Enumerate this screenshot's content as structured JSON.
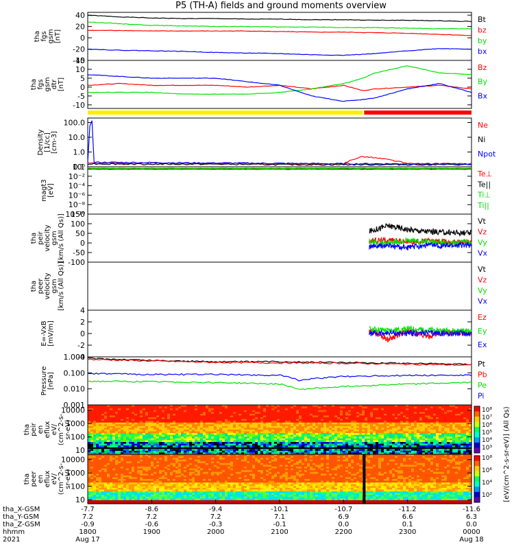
{
  "title": "P5 (TH-A) fields and ground moments overview",
  "colors": {
    "black": "#000000",
    "red": "#ff0000",
    "green": "#00e000",
    "blue": "#0000ff",
    "yellow": "#ffee00"
  },
  "chart_data": [
    {
      "id": "fgs-gsm-mag",
      "type": "line",
      "ylabel": [
        "tha",
        "fgs",
        "gsm",
        "[nT]"
      ],
      "ylim": [
        -40,
        45
      ],
      "yticks": [
        40,
        20,
        0,
        -20,
        -40
      ],
      "series": [
        {
          "name": "Bt",
          "color": "#000000",
          "x": [
            18.0,
            18.5,
            19.0,
            19.5,
            20.0,
            20.5,
            21.0,
            21.5,
            22.0,
            22.5,
            23.0,
            23.5,
            24.0
          ],
          "values": [
            40,
            37,
            35,
            34,
            34,
            33,
            33,
            32,
            32,
            31,
            31,
            30,
            29
          ]
        },
        {
          "name": "bz",
          "color": "#ff0000",
          "x": [
            18.0,
            18.5,
            19.0,
            19.5,
            20.0,
            20.5,
            21.0,
            21.5,
            22.0,
            22.5,
            23.0,
            23.5,
            24.0
          ],
          "values": [
            13,
            13,
            12,
            12,
            12,
            12,
            11,
            10,
            10,
            9,
            8,
            6,
            4
          ]
        },
        {
          "name": "by",
          "color": "#00e000",
          "x": [
            18.0,
            18.5,
            19.0,
            19.5,
            20.0,
            20.5,
            21.0,
            21.5,
            22.0,
            22.5,
            23.0,
            23.5,
            24.0
          ],
          "values": [
            28,
            25,
            22,
            21,
            20,
            20,
            19,
            19,
            18,
            18,
            17,
            16,
            16
          ]
        },
        {
          "name": "bx",
          "color": "#0000ff",
          "x": [
            18.0,
            18.5,
            19.0,
            19.5,
            20.0,
            20.5,
            21.0,
            21.5,
            22.0,
            22.5,
            23.0,
            23.5,
            24.0
          ],
          "values": [
            -20,
            -22,
            -23,
            -24,
            -26,
            -27,
            -28,
            -30,
            -31,
            -28,
            -23,
            -19,
            -20
          ]
        }
      ]
    },
    {
      "id": "fgs-gsm-detrended",
      "type": "line",
      "ylabel": [
        "tha",
        "fgs",
        "gsm",
        "dtr",
        "[nT]"
      ],
      "ylim": [
        -12,
        15
      ],
      "yticks": [
        15,
        10,
        5,
        0,
        -5,
        -10
      ],
      "series": [
        {
          "name": "Bz",
          "color": "#ff0000",
          "x": [
            18.0,
            18.5,
            19.0,
            19.5,
            20.0,
            20.5,
            21.0,
            21.5,
            22.0,
            22.3,
            22.5,
            23.0,
            23.5,
            24.0
          ],
          "values": [
            1,
            2,
            1,
            1,
            1,
            0,
            1,
            -1,
            1,
            -2,
            -1,
            0,
            1,
            -1
          ]
        },
        {
          "name": "By",
          "color": "#00e000",
          "x": [
            18.0,
            18.5,
            19.0,
            19.5,
            20.0,
            20.5,
            21.0,
            21.5,
            22.0,
            22.3,
            22.5,
            23.0,
            23.5,
            24.0
          ],
          "values": [
            -3,
            -3,
            -3,
            -4,
            -4,
            -4,
            -3,
            -1,
            2,
            5,
            8,
            12,
            8,
            7
          ]
        },
        {
          "name": "Bx",
          "color": "#0000ff",
          "x": [
            18.0,
            18.5,
            19.0,
            19.5,
            20.0,
            20.5,
            21.0,
            21.5,
            22.0,
            22.3,
            22.5,
            23.0,
            23.5,
            24.0
          ],
          "values": [
            7,
            6,
            5,
            5,
            5,
            3,
            1,
            -5,
            -8,
            -7,
            -6,
            -1,
            2,
            -3
          ]
        }
      ]
    },
    {
      "id": "peir-density",
      "type": "line",
      "ylabel": [
        "Density",
        "[1/cc]",
        "[cm-3]"
      ],
      "ylog": true,
      "ylim": [
        0.1,
        200
      ],
      "yticks": [
        100.0,
        10.0,
        1.0,
        0.1
      ],
      "yticklabels": [
        "100.0",
        "10.0",
        "1.0",
        "0.1"
      ],
      "series": [
        {
          "name": "Ne",
          "color": "#ff0000",
          "x": [
            18.0,
            19.0,
            20.0,
            21.0,
            22.0,
            22.3,
            23.0,
            24.0
          ],
          "values": [
            0.18,
            0.17,
            0.17,
            0.16,
            0.15,
            0.5,
            0.16,
            0.16
          ]
        },
        {
          "name": "Ni",
          "color": "#000000",
          "x": [
            18.0,
            19.0,
            20.0,
            21.0,
            22.0,
            23.0,
            24.0
          ],
          "values": [
            0.16,
            0.15,
            0.15,
            0.14,
            0.14,
            0.14,
            0.14
          ]
        },
        {
          "name": "Npot",
          "color": "#0000ff",
          "x": [
            18.0,
            18.08,
            18.1,
            19.0,
            20.0,
            21.0,
            22.0,
            23.0,
            24.0
          ],
          "values": [
            0.2,
            150,
            0.2,
            0.19,
            0.18,
            0.17,
            0.16,
            0.16,
            0.15
          ]
        }
      ]
    },
    {
      "id": "magt3",
      "type": "line",
      "ylabel": [
        "magt3",
        "[eV]"
      ],
      "ylog": true,
      "ylim": [
        1e-10,
        1
      ],
      "yticks": [
        1,
        0.01,
        0.0001,
        1e-06,
        1e-08,
        1e-10
      ],
      "yticklabels": [
        "10⁰",
        "10⁻²",
        "10⁻⁴",
        "10⁻⁶",
        "10⁻⁸",
        "10⁻¹⁰"
      ],
      "series": [
        {
          "name": "Te⊥",
          "color": "#ff0000",
          "x": [
            18.0,
            24.0
          ],
          "values": [
            0.3,
            0.3
          ]
        },
        {
          "name": "Te||",
          "color": "#000000",
          "x": [
            18.0,
            24.0
          ],
          "values": [
            0.4,
            0.4
          ]
        },
        {
          "name": "Ti⊥",
          "color": "#00e000",
          "x": [
            18.0,
            24.0
          ],
          "values": [
            0.5,
            0.5
          ]
        },
        {
          "name": "Ti||",
          "color": "#00e000",
          "x": [
            18.0,
            24.0
          ],
          "values": [
            0.45,
            0.45
          ]
        }
      ]
    },
    {
      "id": "peir-velocity",
      "type": "line",
      "ylabel": [
        "tha",
        "peir",
        "velocity",
        "gsm",
        "[km/s (All Qs)]"
      ],
      "ylim": [
        -100,
        150
      ],
      "yticks": [
        150,
        100,
        50,
        0,
        -50,
        -100
      ],
      "series": [
        {
          "name": "Vt",
          "color": "#000000",
          "x": [
            22.4,
            22.7,
            23.0,
            23.3,
            23.6,
            24.0
          ],
          "values": [
            60,
            90,
            70,
            60,
            55,
            50
          ]
        },
        {
          "name": "Vz",
          "color": "#ff0000",
          "x": [
            22.4,
            22.7,
            23.0,
            23.3,
            23.6,
            24.0
          ],
          "values": [
            10,
            15,
            5,
            10,
            5,
            5
          ]
        },
        {
          "name": "Vy",
          "color": "#00e000",
          "x": [
            22.4,
            22.7,
            23.0,
            23.3,
            23.6,
            24.0
          ],
          "values": [
            5,
            0,
            10,
            5,
            0,
            5
          ]
        },
        {
          "name": "Vx",
          "color": "#0000ff",
          "x": [
            22.4,
            22.7,
            23.0,
            23.3,
            23.6,
            24.0
          ],
          "values": [
            -20,
            -15,
            -25,
            -10,
            -15,
            -10
          ]
        }
      ]
    },
    {
      "id": "peer-velocity",
      "type": "line",
      "ylabel": [
        "tha",
        "peer",
        "velocity",
        "gsm",
        "[km/s (All Qs)]"
      ],
      "ylim": [
        -100,
        150
      ],
      "yticks": [],
      "series": [
        {
          "name": "Vt",
          "color": "#000000",
          "x": [],
          "values": []
        },
        {
          "name": "Vz",
          "color": "#ff0000",
          "x": [],
          "values": []
        },
        {
          "name": "Vy",
          "color": "#00e000",
          "x": [],
          "values": []
        },
        {
          "name": "Vx",
          "color": "#0000ff",
          "x": [],
          "values": []
        }
      ]
    },
    {
      "id": "e-field",
      "type": "line",
      "ylabel": [
        "E=-VxB",
        "[mV/m]"
      ],
      "ylim": [
        -4,
        4
      ],
      "yticks": [
        4,
        2,
        0,
        -2,
        -4
      ],
      "series": [
        {
          "name": "Ez",
          "color": "#ff0000",
          "x": [
            22.4,
            22.7,
            23.0,
            23.3,
            23.6,
            24.0
          ],
          "values": [
            0.5,
            -1.0,
            0.5,
            -0.5,
            0.2,
            0.1
          ]
        },
        {
          "name": "Ey",
          "color": "#00e000",
          "x": [
            22.4,
            22.7,
            23.0,
            23.3,
            23.6,
            24.0
          ],
          "values": [
            0.8,
            0.5,
            0.8,
            0.6,
            0.5,
            0.4
          ]
        },
        {
          "name": "Ex",
          "color": "#0000ff",
          "x": [
            22.4,
            22.7,
            23.0,
            23.3,
            23.6,
            24.0
          ],
          "values": [
            0.0,
            0.1,
            0.0,
            0.1,
            0.0,
            0.0
          ]
        }
      ]
    },
    {
      "id": "pressure",
      "type": "line",
      "ylabel": [
        "Pressure",
        "[nPa]"
      ],
      "ylog": true,
      "ylim": [
        0.001,
        1.0
      ],
      "yticks": [
        1.0,
        0.1,
        0.01,
        0.001
      ],
      "yticklabels": [
        "1.000",
        "0.100",
        "0.010",
        "0.001"
      ],
      "series": [
        {
          "name": "Pt",
          "color": "#000000",
          "x": [
            18.0,
            19.0,
            20.0,
            21.0,
            22.0,
            23.0,
            24.0
          ],
          "values": [
            0.8,
            0.6,
            0.5,
            0.5,
            0.45,
            0.4,
            0.35
          ]
        },
        {
          "name": "Pb",
          "color": "#ff0000",
          "x": [
            18.0,
            19.0,
            20.0,
            21.0,
            22.0,
            23.0,
            24.0
          ],
          "values": [
            0.7,
            0.55,
            0.45,
            0.42,
            0.4,
            0.35,
            0.3
          ]
        },
        {
          "name": "Pe",
          "color": "#00e000",
          "x": [
            18.0,
            19.0,
            20.0,
            21.0,
            21.3,
            22.0,
            23.0,
            24.0
          ],
          "values": [
            0.03,
            0.028,
            0.025,
            0.02,
            0.009,
            0.014,
            0.02,
            0.025
          ]
        },
        {
          "name": "Pi",
          "color": "#0000ff",
          "x": [
            18.0,
            19.0,
            20.0,
            21.0,
            21.3,
            22.0,
            23.0,
            24.0
          ],
          "values": [
            0.09,
            0.08,
            0.08,
            0.07,
            0.035,
            0.06,
            0.07,
            0.07
          ]
        }
      ]
    },
    {
      "id": "peir-en-eflux",
      "type": "heatmap",
      "ylabel": [
        "tha",
        "peir",
        "en",
        "eflux",
        "eV/",
        "(cm^2-s-",
        "sr-eV)"
      ],
      "ylog": true,
      "ylim": [
        5,
        25000
      ],
      "yticks": [
        10000,
        1000,
        100,
        10
      ],
      "yticklabels": [
        "10000",
        "1000",
        "100",
        "10"
      ]
    },
    {
      "id": "peer-en-eflux",
      "type": "heatmap",
      "ylabel": [
        "tha",
        "peer",
        "en",
        "eflux",
        "eV/",
        "(cm^2-s-",
        "sr-eV)"
      ],
      "ylog": true,
      "ylim": [
        5,
        25000
      ],
      "yticks": [
        10000,
        1000,
        100,
        10
      ],
      "yticklabels": [
        "10000",
        "1000",
        "100",
        "10"
      ]
    }
  ],
  "colorbar": {
    "label": "[eV/(cm^2-s-sr-eV)] (All Qs)",
    "ticks_upper": [
      "10⁸",
      "10⁷",
      "10⁶",
      "10⁵",
      "10⁴",
      "10³"
    ],
    "ticks_lower": [
      "10⁸",
      "10⁶",
      "10⁴",
      "10²"
    ]
  },
  "xaxis": {
    "row_labels": [
      "tha_X-GSM",
      "tha_Y-GSM",
      "tha_Z-GSM",
      "hhmm",
      "2021"
    ],
    "columns": [
      {
        "x": 18.0,
        "vals": [
          "-7.7",
          "7.2",
          "-0.9",
          "1800",
          "Aug 17"
        ]
      },
      {
        "x": 19.0,
        "vals": [
          "-8.6",
          "7.2",
          "-0.6",
          "1900",
          ""
        ]
      },
      {
        "x": 20.0,
        "vals": [
          "-9.4",
          "7.2",
          "-0.3",
          "2000",
          ""
        ]
      },
      {
        "x": 21.0,
        "vals": [
          "-10.1",
          "7.1",
          "-0.1",
          "2100",
          ""
        ]
      },
      {
        "x": 22.0,
        "vals": [
          "-10.7",
          "6.9",
          "0.0",
          "2200",
          ""
        ]
      },
      {
        "x": 23.0,
        "vals": [
          "-11.2",
          "6.6",
          "0.1",
          "2300",
          ""
        ]
      },
      {
        "x": 24.0,
        "vals": [
          "-11.6",
          "6.3",
          "0.0",
          "0000",
          "Aug 18"
        ]
      }
    ]
  },
  "status_bar": {
    "yellow_until": 22.3
  }
}
